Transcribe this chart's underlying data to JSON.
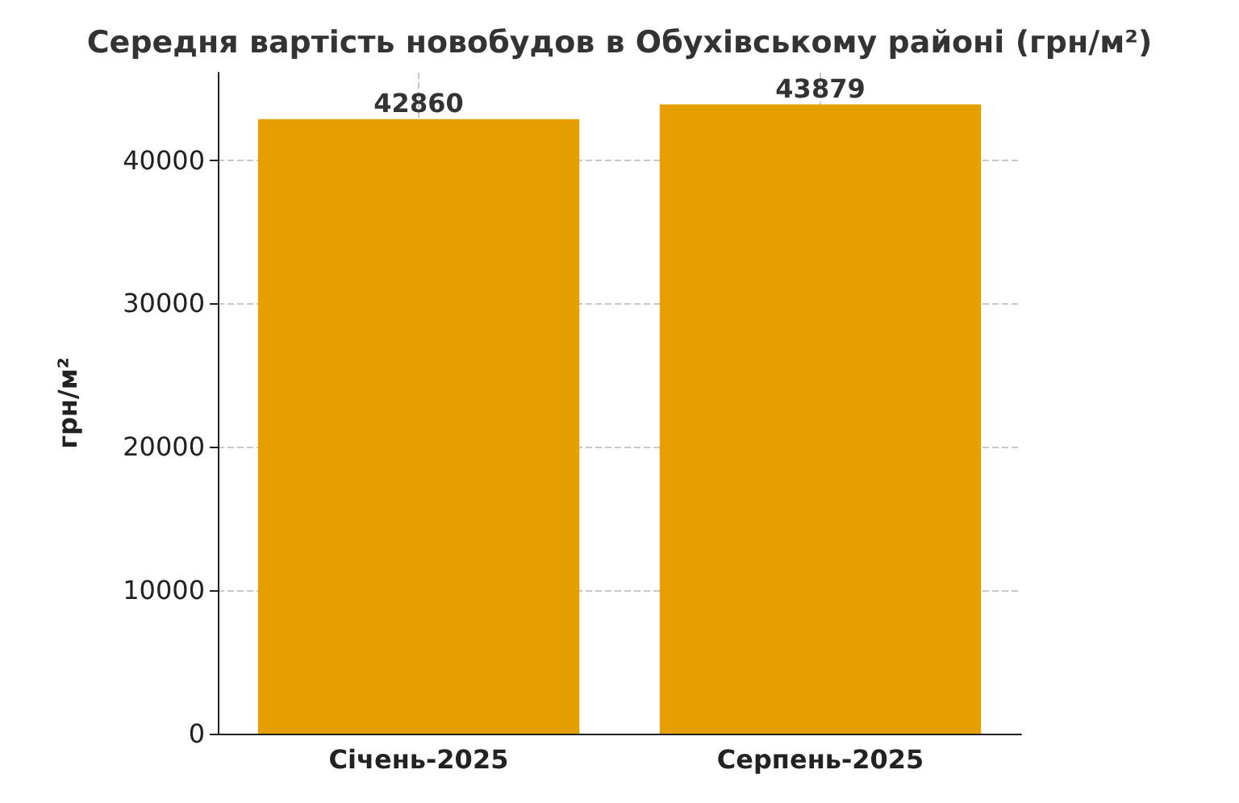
{
  "chart_data": {
    "type": "bar",
    "title": "Середня вартість новобудов в Обухівському районі (грн/м²)",
    "ylabel": "грн/м²",
    "categories": [
      "Січень-2025",
      "Серпень-2025"
    ],
    "values": [
      42860,
      43879
    ],
    "color": "#e69f00",
    "data_labels": true,
    "ylim": [
      0,
      46100
    ],
    "yticks": [
      0,
      10000,
      20000,
      30000,
      40000
    ],
    "grid": true
  }
}
